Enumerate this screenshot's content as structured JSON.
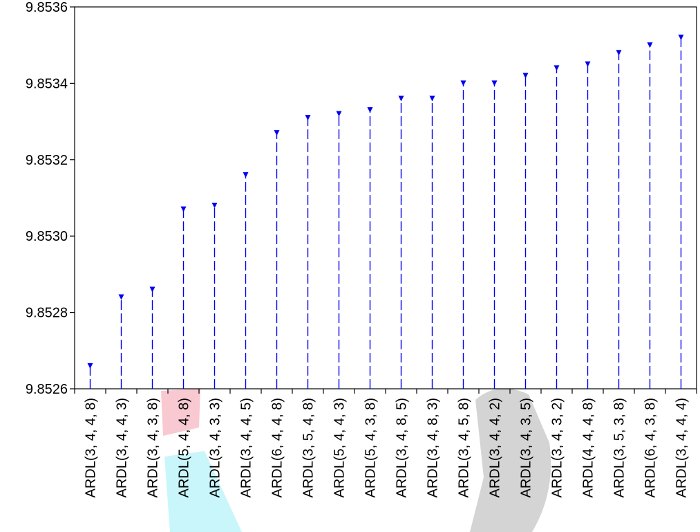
{
  "chart_data": {
    "type": "line",
    "title": "",
    "xlabel": "",
    "ylabel": "",
    "ylim": [
      9.8526,
      9.8536
    ],
    "yticks": [
      "9.8526",
      "9.8528",
      "9.8530",
      "9.8532",
      "9.8534",
      "9.8536"
    ],
    "grid": false,
    "legend": "none",
    "marker": "triangle-down",
    "line_style": "dashed",
    "series_color": "#0000ee",
    "categories": [
      "ARDL(3, 4, 4, 8)",
      "ARDL(3, 4, 4, 3)",
      "ARDL(3, 4, 3, 8)",
      "ARDL(5, 4, 4, 8)",
      "ARDL(3, 4, 3, 3)",
      "ARDL(3, 4, 4, 5)",
      "ARDL(6, 4, 4, 8)",
      "ARDL(3, 5, 4, 8)",
      "ARDL(5, 4, 4, 3)",
      "ARDL(5, 4, 3, 8)",
      "ARDL(3, 4, 8, 5)",
      "ARDL(3, 4, 8, 3)",
      "ARDL(3, 4, 5, 8)",
      "ARDL(3, 4, 4, 2)",
      "ARDL(3, 4, 3, 5)",
      "ARDL(3, 4, 3, 2)",
      "ARDL(4, 4, 4, 8)",
      "ARDL(3, 5, 3, 8)",
      "ARDL(6, 4, 3, 8)",
      "ARDL(3, 4, 4, 4)"
    ],
    "values": [
      9.85266,
      9.85284,
      9.85286,
      9.85307,
      9.85308,
      9.85316,
      9.85327,
      9.85331,
      9.85332,
      9.85333,
      9.85336,
      9.85336,
      9.8534,
      9.8534,
      9.85342,
      9.85344,
      9.85345,
      9.85348,
      9.8535,
      9.85352
    ]
  }
}
